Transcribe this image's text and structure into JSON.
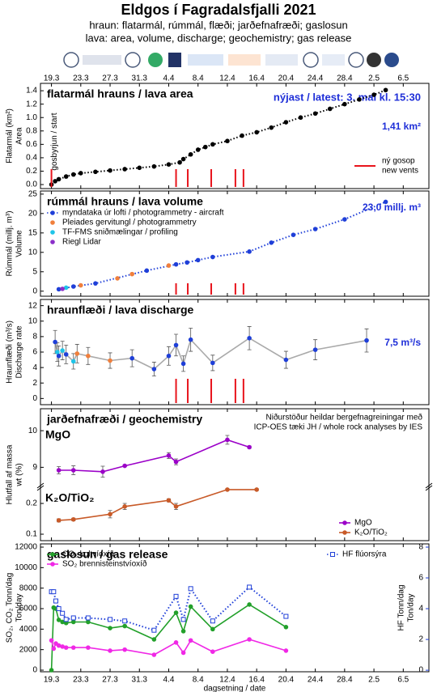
{
  "title": "Eldgos í Fagradalsfjalli 2021",
  "subtitle": [
    "hraun: flatarmál, rúmmál, flæði; jarðefnafræði; gaslosun",
    "lava: area, volume, discharge; geochemistry; gas release"
  ],
  "chart_data": [
    {
      "type": "line",
      "title": "flatarmál hrauns / lava area",
      "latest": "nýjast / latest: 3. maí kl. 15:30",
      "value_label": "1,41 km²",
      "ylabel": [
        "Flatarmál (km²)",
        "Area"
      ],
      "x": [
        0,
        0.5,
        1,
        2,
        3,
        4,
        6,
        8,
        10,
        12,
        14,
        16,
        17.5,
        18,
        19,
        20,
        21,
        22,
        24,
        26,
        28,
        30,
        32,
        34,
        36,
        38,
        40,
        42,
        44,
        45.6
      ],
      "values": [
        0,
        0.05,
        0.08,
        0.12,
        0.15,
        0.17,
        0.19,
        0.21,
        0.23,
        0.25,
        0.27,
        0.3,
        0.33,
        0.38,
        0.45,
        0.52,
        0.56,
        0.6,
        0.65,
        0.73,
        0.78,
        0.85,
        0.93,
        1.0,
        1.06,
        1.13,
        1.2,
        1.27,
        1.34,
        1.41
      ],
      "color": "#000000",
      "linestyle": "dotted",
      "xlim": [
        -1.5,
        51.5
      ],
      "xticks": [
        {
          "value": 0,
          "label": "19.3"
        },
        {
          "value": 4,
          "label": "23.3"
        },
        {
          "value": 8,
          "label": "27.3"
        },
        {
          "value": 12,
          "label": "31.3"
        },
        {
          "value": 16,
          "label": "4.4"
        },
        {
          "value": 20,
          "label": "8.4"
        },
        {
          "value": 24,
          "label": "12.4"
        },
        {
          "value": 28,
          "label": "16.4"
        },
        {
          "value": 32,
          "label": "20.4"
        },
        {
          "value": 36,
          "label": "24.4"
        },
        {
          "value": 40,
          "label": "28.4"
        },
        {
          "value": 44,
          "label": "2.5"
        },
        {
          "value": 48,
          "label": "6.5"
        }
      ],
      "ylim": [
        -0.06,
        1.51
      ],
      "yticks": [
        {
          "value": 0,
          "label": "0.0"
        },
        0.2,
        0.4,
        0.6,
        0.8,
        {
          "value": 1,
          "label": "1.0"
        },
        1.2,
        1.4
      ],
      "start": {
        "x": 0,
        "label": "gosbyrjun / start"
      },
      "vents": {
        "name": [
          "ný gosop",
          "new vents"
        ],
        "color": "#e8141c",
        "x": [
          17,
          18.6,
          21.8,
          25.1,
          26.2
        ]
      },
      "legend": "lower right"
    },
    {
      "type": "scatter",
      "title": "rúmmál hrauns / lava volume",
      "value_label": "23,0 millj. m³",
      "ylabel": [
        "Rúmmál (millj. m³)",
        "Volume"
      ],
      "series": [
        {
          "name": "myndataka úr lofti  /  photogrammetry - aircraft",
          "color": "#1f3fd8",
          "linestyle": "dotted",
          "x": [
            1,
            3,
            6,
            13,
            17,
            18.5,
            20,
            22,
            27,
            30,
            33,
            36,
            40,
            45.6
          ],
          "values": [
            0.5,
            1.2,
            2.0,
            5.3,
            6.9,
            7.4,
            8.0,
            8.8,
            10.2,
            12.5,
            14.5,
            16.0,
            18.5,
            23.0
          ]
        },
        {
          "name": "Pleiades gervitungl  /  photogrammetry",
          "color": "#f07f3c",
          "x": [
            4,
            9,
            11,
            16
          ],
          "values": [
            1.5,
            3.3,
            4.4,
            6.6
          ]
        },
        {
          "name": "TF-FMS sniðmælingar  /  profiling",
          "color": "#1fc4e8",
          "x": [
            2
          ],
          "values": [
            0.9
          ]
        },
        {
          "name": "Riegl Lidar",
          "color": "#8b2fc9",
          "x": [
            1.5
          ],
          "values": [
            0.6
          ]
        }
      ],
      "xlim": [
        -1.5,
        51.5
      ],
      "xticks": [
        0,
        4,
        8,
        12,
        16,
        20,
        24,
        28,
        32,
        36,
        40,
        44,
        48
      ],
      "ylim": [
        -1.3,
        25.8
      ],
      "yticks": [
        0,
        5,
        10,
        15,
        20,
        25
      ],
      "legend": "upper left"
    },
    {
      "type": "line",
      "title": "hraunflæði / lava discharge",
      "value_label": "7,5 m³/s",
      "ylabel": [
        "Hraunflæði (m³/s)",
        "Discharge rate"
      ],
      "x": [
        0.5,
        0.8,
        1,
        1.5,
        2,
        3,
        3.5,
        5,
        8,
        11,
        14,
        16,
        17,
        18,
        19,
        22,
        27,
        32,
        36,
        43
      ],
      "values": [
        7.3,
        6.0,
        5.5,
        6.2,
        5.7,
        4.8,
        5.8,
        5.5,
        4.9,
        5.2,
        3.8,
        5.5,
        6.9,
        4.5,
        7.6,
        4.6,
        7.8,
        5.0,
        6.3,
        7.5
      ],
      "errors": [
        1.5,
        1.2,
        1.3,
        1.2,
        1.2,
        1.0,
        1.2,
        1.1,
        1.0,
        1.1,
        0.9,
        1.2,
        1.4,
        1.0,
        1.5,
        1.0,
        1.5,
        1.1,
        1.3,
        1.5
      ],
      "colors": [
        "#1f3fd8",
        "#1fc4e8",
        "#1f3fd8",
        "#1fc4e8",
        "#1f3fd8",
        "#1fc4e8",
        "#f07f3c",
        "#f07f3c",
        "#f07f3c",
        "#1f3fd8",
        "#1f3fd8",
        "#1f3fd8",
        "#1f3fd8",
        "#1f3fd8",
        "#1f3fd8",
        "#1f3fd8",
        "#1f3fd8",
        "#1f3fd8",
        "#1f3fd8",
        "#1f3fd8"
      ],
      "color": "#aaaaaa",
      "xlim": [
        -1.5,
        51.5
      ],
      "xticks": [
        0,
        4,
        8,
        12,
        16,
        20,
        24,
        28,
        32,
        36,
        40,
        44,
        48
      ],
      "ylim": [
        -0.8,
        12.8
      ],
      "yticks": [
        0,
        2,
        4,
        6,
        8,
        10,
        12
      ]
    },
    {
      "type": "line",
      "title": "jarðefnafræði / geochemistry",
      "note": [
        "Niðurstöður heildar bergefnagreiningar með",
        "ICP-OES tæki JH / whole rock analyses by IES"
      ],
      "ylabel": [
        "Hlutfall af massa",
        "wt (%)"
      ],
      "subplots": [
        {
          "label": "MgO",
          "ylim": [
            8.5,
            10.6
          ],
          "yticks": [
            9,
            10
          ],
          "series": [
            {
              "name": "MgO",
              "color": "#9b00c8",
              "x": [
                1,
                3,
                7,
                10,
                16,
                17,
                24,
                27
              ],
              "values": [
                8.92,
                8.92,
                8.88,
                9.04,
                9.32,
                9.15,
                9.75,
                9.55
              ],
              "errors": [
                0.1,
                0.12,
                0.15,
                0.02,
                0.08,
                0.08,
                0.12,
                0.03
              ]
            }
          ]
        },
        {
          "label": "K₂O/TiO₂",
          "ylim": [
            0.079,
            0.258
          ],
          "yticks": [
            0.1,
            0.2
          ],
          "series": [
            {
              "name": "K₂O/TiO₂",
              "color": "#c85a28",
              "x": [
                1,
                3,
                8,
                10,
                16,
                17,
                24,
                28
              ],
              "values": [
                0.145,
                0.148,
                0.165,
                0.19,
                0.21,
                0.19,
                0.245,
                0.245
              ],
              "errors": [
                0.005,
                0.004,
                0.012,
                0.01,
                0.005,
                0.01,
                0.003,
                0.003
              ]
            }
          ]
        }
      ],
      "xlim": [
        -1.5,
        51.5
      ],
      "xticks": [
        0,
        4,
        8,
        12,
        16,
        20,
        24,
        28,
        32,
        36,
        40,
        44,
        48
      ],
      "legend": "lower right"
    },
    {
      "type": "line",
      "title": "gaslosun / gas release",
      "xlabel": "dagsetning / date",
      "ylabel": [
        "SO₂, CO₂ Tonn/dag",
        "Ton/day"
      ],
      "y2label": [
        "HF Tonn/dag",
        "Ton/day"
      ],
      "series": [
        {
          "name": "CO₂ koltvíoxíð",
          "color": "#22a02a",
          "x": [
            0,
            0.3,
            0.6,
            1,
            1.5,
            2,
            3,
            5,
            8,
            10,
            14,
            17,
            18,
            19,
            22,
            27,
            32
          ],
          "values": [
            0,
            6100,
            6000,
            4900,
            4700,
            4600,
            4700,
            4700,
            4100,
            4300,
            3000,
            5600,
            3800,
            6200,
            4000,
            6400,
            4200
          ]
        },
        {
          "name": "SO₂ brennisteinstvíoxíð",
          "color": "#f028e6",
          "x": [
            0,
            0.3,
            0.6,
            1,
            1.5,
            2,
            3,
            5,
            8,
            10,
            14,
            17,
            18,
            19,
            22,
            27,
            32
          ],
          "values": [
            2900,
            2100,
            2600,
            2400,
            2300,
            2200,
            2200,
            2200,
            1900,
            2000,
            1500,
            2700,
            1700,
            2900,
            1800,
            3000,
            1900
          ]
        },
        {
          "name": "HF flúorsýra",
          "color": "#1f3fd8",
          "axis": "y2",
          "linestyle": "dotted",
          "marker": "square",
          "x": [
            0,
            0.3,
            0.6,
            1,
            1.5,
            2,
            3,
            5,
            8,
            10,
            14,
            17,
            18,
            19,
            22,
            27,
            32
          ],
          "values": [
            5.1,
            5.1,
            4.5,
            4.0,
            3.7,
            3.3,
            3.4,
            3.4,
            3.3,
            3.2,
            2.6,
            4.8,
            3.3,
            5.3,
            3.2,
            5.4,
            3.5
          ]
        }
      ],
      "xlim": [
        -1.5,
        51.5
      ],
      "xticks": [
        {
          "value": 0,
          "label": "19.3"
        },
        {
          "value": 4,
          "label": "23.3"
        },
        {
          "value": 8,
          "label": "27.3"
        },
        {
          "value": 12,
          "label": "31.3"
        },
        {
          "value": 16,
          "label": "4.4"
        },
        {
          "value": 20,
          "label": "8.4"
        },
        {
          "value": 24,
          "label": "12.4"
        },
        {
          "value": 28,
          "label": "16.4"
        },
        {
          "value": 32,
          "label": "20.4"
        },
        {
          "value": 36,
          "label": "24.4"
        },
        {
          "value": 40,
          "label": "28.4"
        },
        {
          "value": 44,
          "label": "2.5"
        },
        {
          "value": 48,
          "label": "6.5"
        }
      ],
      "ylim": [
        -158,
        12316
      ],
      "yticks": [
        0,
        2000,
        4000,
        6000,
        8000,
        10000,
        12000
      ],
      "y2lim": [
        -0.1,
        8.21
      ],
      "y2ticks": [
        0,
        2,
        4,
        6,
        8
      ],
      "legend": "upper left"
    }
  ]
}
